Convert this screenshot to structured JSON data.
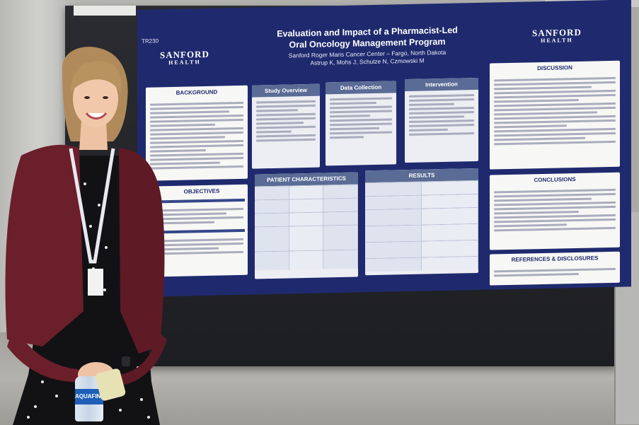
{
  "poster": {
    "code": "TR230",
    "logo_left": {
      "line1": "SANFORD",
      "line2": "HEALTH"
    },
    "logo_right": {
      "line1": "SANFORD",
      "line2": "HEALTH"
    },
    "title_line1": "Evaluation and Impact of a Pharmacist-Led",
    "title_line2": "Oral Oncology Management Program",
    "affiliation": "Sanford Roger Maris Cancer Center – Fargo, North Dakota",
    "authors": "Astrup K, Mohs J, Schulze N, Czmowski M",
    "sections": {
      "background": "BACKGROUND",
      "objectives": "OBJECTIVES",
      "study_overview": "Study Overview",
      "data_collection": "Data Collection",
      "intervention": "Intervention",
      "patient_characteristics": "PATIENT CHARACTERISTICS",
      "results": "RESULTS",
      "discussion": "DISCUSSION",
      "conclusions": "CONCLUSIONS",
      "references": "REFERENCES & DISCLOSURES"
    }
  },
  "bottle_label": "AQUAFINA",
  "colors": {
    "poster_blue": "#1f2a6e",
    "panel_header": "#5a6c95",
    "jacket": "#6b1f2b"
  }
}
